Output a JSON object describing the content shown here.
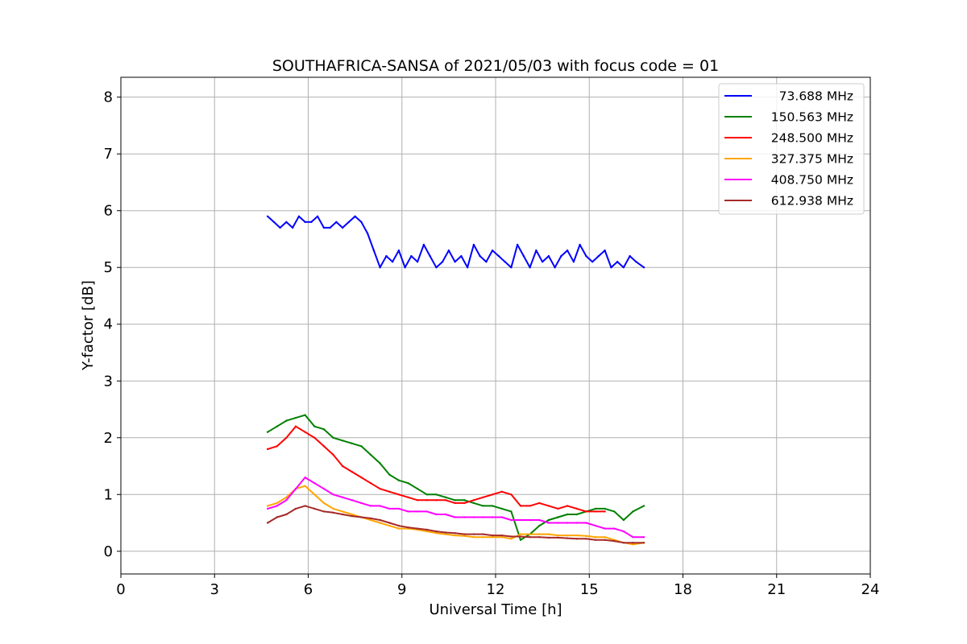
{
  "chart_data": {
    "type": "line",
    "title": "SOUTHAFRICA-SANSA of 2021/05/03 with focus code = 01",
    "xlabel": "Universal Time [h]",
    "ylabel": "Y-factor [dB]",
    "xlim": [
      0,
      24
    ],
    "ylim": [
      -0.4,
      8.35
    ],
    "xticks": [
      0,
      3,
      6,
      9,
      12,
      15,
      18,
      21,
      24
    ],
    "yticks": [
      0,
      1,
      2,
      3,
      4,
      5,
      6,
      7,
      8
    ],
    "grid": true,
    "legend_position": "top-right",
    "series": [
      {
        "name": " 73.688 MHz",
        "color": "#0000ff",
        "x": [
          4.7,
          4.9,
          5.1,
          5.3,
          5.5,
          5.7,
          5.9,
          6.1,
          6.3,
          6.5,
          6.7,
          6.9,
          7.1,
          7.3,
          7.5,
          7.7,
          7.9,
          8.1,
          8.3,
          8.5,
          8.7,
          8.9,
          9.1,
          9.3,
          9.5,
          9.7,
          9.9,
          10.1,
          10.3,
          10.5,
          10.7,
          10.9,
          11.1,
          11.3,
          11.5,
          11.7,
          11.9,
          12.1,
          12.3,
          12.5,
          12.7,
          12.9,
          13.1,
          13.3,
          13.5,
          13.7,
          13.9,
          14.1,
          14.3,
          14.5,
          14.7,
          14.9,
          15.1,
          15.3,
          15.5,
          15.7,
          15.9,
          16.1,
          16.3,
          16.5,
          16.75
        ],
        "values": [
          5.9,
          5.8,
          5.7,
          5.8,
          5.7,
          5.9,
          5.8,
          5.8,
          5.9,
          5.7,
          5.7,
          5.8,
          5.7,
          5.8,
          5.9,
          5.8,
          5.6,
          5.3,
          5.0,
          5.2,
          5.1,
          5.3,
          5.0,
          5.2,
          5.1,
          5.4,
          5.2,
          5.0,
          5.1,
          5.3,
          5.1,
          5.2,
          5.0,
          5.4,
          5.2,
          5.1,
          5.3,
          5.2,
          5.1,
          5.0,
          5.4,
          5.2,
          5.0,
          5.3,
          5.1,
          5.2,
          5.0,
          5.2,
          5.3,
          5.1,
          5.4,
          5.2,
          5.1,
          5.2,
          5.3,
          5.0,
          5.1,
          5.0,
          5.2,
          5.1,
          5.0
        ]
      },
      {
        "name": "150.563 MHz",
        "color": "#008000",
        "x": [
          4.7,
          5.0,
          5.3,
          5.6,
          5.9,
          6.2,
          6.5,
          6.8,
          7.1,
          7.4,
          7.7,
          8.0,
          8.3,
          8.6,
          8.9,
          9.2,
          9.5,
          9.8,
          10.1,
          10.4,
          10.7,
          11.0,
          11.3,
          11.6,
          11.9,
          12.2,
          12.5,
          12.8,
          13.1,
          13.4,
          13.7,
          14.0,
          14.3,
          14.6,
          14.9,
          15.2,
          15.5,
          15.8,
          16.1,
          16.4,
          16.75
        ],
        "values": [
          2.1,
          2.2,
          2.3,
          2.35,
          2.4,
          2.2,
          2.15,
          2.0,
          1.95,
          1.9,
          1.85,
          1.7,
          1.55,
          1.35,
          1.25,
          1.2,
          1.1,
          1.0,
          1.0,
          0.95,
          0.9,
          0.9,
          0.85,
          0.8,
          0.8,
          0.75,
          0.7,
          0.2,
          0.3,
          0.45,
          0.55,
          0.6,
          0.65,
          0.65,
          0.7,
          0.75,
          0.75,
          0.7,
          0.55,
          0.7,
          0.8
        ]
      },
      {
        "name": "248.500 MHz",
        "color": "#ff0000",
        "x": [
          4.7,
          5.0,
          5.3,
          5.6,
          5.9,
          6.2,
          6.5,
          6.8,
          7.1,
          7.4,
          7.7,
          8.0,
          8.3,
          8.6,
          8.9,
          9.2,
          9.5,
          9.8,
          10.1,
          10.4,
          10.7,
          11.0,
          11.3,
          11.6,
          11.9,
          12.2,
          12.5,
          12.8,
          13.1,
          13.4,
          13.7,
          14.0,
          14.3,
          14.6,
          14.9,
          15.2,
          15.5
        ],
        "values": [
          1.8,
          1.85,
          2.0,
          2.2,
          2.1,
          2.0,
          1.85,
          1.7,
          1.5,
          1.4,
          1.3,
          1.2,
          1.1,
          1.05,
          1.0,
          0.95,
          0.9,
          0.9,
          0.9,
          0.9,
          0.85,
          0.85,
          0.9,
          0.95,
          1.0,
          1.05,
          1.0,
          0.8,
          0.8,
          0.85,
          0.8,
          0.75,
          0.8,
          0.75,
          0.7,
          0.7,
          0.7
        ]
      },
      {
        "name": "327.375 MHz",
        "color": "#ffa500",
        "x": [
          4.7,
          5.0,
          5.3,
          5.6,
          5.9,
          6.2,
          6.5,
          6.8,
          7.1,
          7.4,
          7.7,
          8.0,
          8.3,
          8.6,
          8.9,
          9.2,
          9.5,
          9.8,
          10.1,
          10.4,
          10.7,
          11.0,
          11.3,
          11.6,
          11.9,
          12.2,
          12.5,
          12.8,
          13.1,
          13.4,
          13.7,
          14.0,
          14.3,
          14.6,
          14.9,
          15.2,
          15.5,
          15.8,
          16.1,
          16.4,
          16.75
        ],
        "values": [
          0.8,
          0.85,
          0.95,
          1.1,
          1.15,
          1.0,
          0.85,
          0.75,
          0.7,
          0.65,
          0.6,
          0.55,
          0.5,
          0.45,
          0.4,
          0.4,
          0.38,
          0.35,
          0.32,
          0.3,
          0.28,
          0.27,
          0.25,
          0.25,
          0.25,
          0.25,
          0.22,
          0.3,
          0.3,
          0.3,
          0.3,
          0.28,
          0.28,
          0.28,
          0.27,
          0.25,
          0.25,
          0.2,
          0.15,
          0.12,
          0.15
        ]
      },
      {
        "name": "408.750 MHz",
        "color": "#ff00ff",
        "x": [
          4.7,
          5.0,
          5.3,
          5.6,
          5.9,
          6.2,
          6.5,
          6.8,
          7.1,
          7.4,
          7.7,
          8.0,
          8.3,
          8.6,
          8.9,
          9.2,
          9.5,
          9.8,
          10.1,
          10.4,
          10.7,
          11.0,
          11.3,
          11.6,
          11.9,
          12.2,
          12.5,
          12.8,
          13.1,
          13.4,
          13.7,
          14.0,
          14.3,
          14.6,
          14.9,
          15.2,
          15.5,
          15.8,
          16.1,
          16.4,
          16.75
        ],
        "values": [
          0.75,
          0.8,
          0.9,
          1.1,
          1.3,
          1.2,
          1.1,
          1.0,
          0.95,
          0.9,
          0.85,
          0.8,
          0.8,
          0.75,
          0.75,
          0.7,
          0.7,
          0.7,
          0.65,
          0.65,
          0.6,
          0.6,
          0.6,
          0.6,
          0.6,
          0.6,
          0.55,
          0.55,
          0.55,
          0.55,
          0.5,
          0.5,
          0.5,
          0.5,
          0.5,
          0.45,
          0.4,
          0.4,
          0.35,
          0.25,
          0.25
        ]
      },
      {
        "name": "612.938 MHz",
        "color": "#a52a2a",
        "x": [
          4.7,
          5.0,
          5.3,
          5.6,
          5.9,
          6.2,
          6.5,
          6.8,
          7.1,
          7.4,
          7.7,
          8.0,
          8.3,
          8.6,
          8.9,
          9.2,
          9.5,
          9.8,
          10.1,
          10.4,
          10.7,
          11.0,
          11.3,
          11.6,
          11.9,
          12.2,
          12.5,
          12.8,
          13.1,
          13.4,
          13.7,
          14.0,
          14.3,
          14.6,
          14.9,
          15.2,
          15.5,
          15.8,
          16.1,
          16.4,
          16.75
        ],
        "values": [
          0.5,
          0.6,
          0.65,
          0.75,
          0.8,
          0.75,
          0.7,
          0.68,
          0.65,
          0.62,
          0.6,
          0.58,
          0.55,
          0.5,
          0.45,
          0.42,
          0.4,
          0.38,
          0.35,
          0.33,
          0.32,
          0.3,
          0.3,
          0.3,
          0.28,
          0.28,
          0.26,
          0.26,
          0.25,
          0.25,
          0.24,
          0.24,
          0.23,
          0.22,
          0.22,
          0.2,
          0.2,
          0.18,
          0.15,
          0.15,
          0.15
        ]
      }
    ]
  }
}
